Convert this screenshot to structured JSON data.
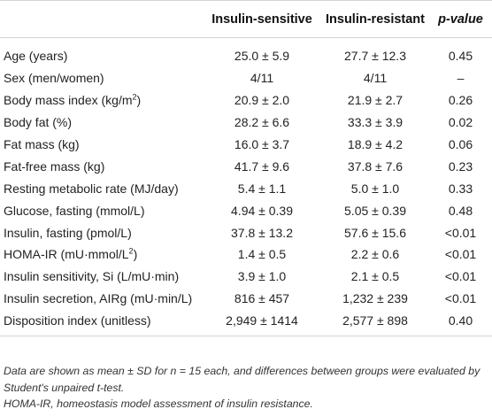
{
  "table": {
    "columns": [
      "",
      "Insulin-sensitive",
      "Insulin-resistant",
      "p-value"
    ],
    "rows": [
      {
        "label": "Age (years)",
        "label_sup": "",
        "label_after": "",
        "sensitive": "25.0 ± 5.9",
        "resistant": "27.7 ± 12.3",
        "p": "0.45"
      },
      {
        "label": "Sex (men/women)",
        "label_sup": "",
        "label_after": "",
        "sensitive": "4/11",
        "resistant": "4/11",
        "p": "–"
      },
      {
        "label": "Body mass index (kg/m",
        "label_sup": "2",
        "label_after": ")",
        "sensitive": "20.9 ± 2.0",
        "resistant": "21.9 ± 2.7",
        "p": "0.26"
      },
      {
        "label": "Body fat (%)",
        "label_sup": "",
        "label_after": "",
        "sensitive": "28.2 ± 6.6",
        "resistant": "33.3 ± 3.9",
        "p": "0.02"
      },
      {
        "label": "Fat mass (kg)",
        "label_sup": "",
        "label_after": "",
        "sensitive": "16.0 ± 3.7",
        "resistant": "18.9 ± 4.2",
        "p": "0.06"
      },
      {
        "label": "Fat-free mass (kg)",
        "label_sup": "",
        "label_after": "",
        "sensitive": "41.7 ± 9.6",
        "resistant": "37.8 ± 7.6",
        "p": "0.23"
      },
      {
        "label": "Resting metabolic rate (MJ/day)",
        "label_sup": "",
        "label_after": "",
        "sensitive": "5.4 ± 1.1",
        "resistant": "5.0 ± 1.0",
        "p": "0.33"
      },
      {
        "label": "Glucose, fasting (mmol/L)",
        "label_sup": "",
        "label_after": "",
        "sensitive": "4.94 ± 0.39",
        "resistant": "5.05 ± 0.39",
        "p": "0.48"
      },
      {
        "label": "Insulin, fasting (pmol/L)",
        "label_sup": "",
        "label_after": "",
        "sensitive": "37.8 ± 13.2",
        "resistant": "57.6 ± 15.6",
        "p": "<0.01"
      },
      {
        "label": "HOMA-IR (mU·mmol/L",
        "label_sup": "2",
        "label_after": ")",
        "sensitive": "1.4 ± 0.5",
        "resistant": "2.2 ± 0.6",
        "p": "<0.01"
      },
      {
        "label": "Insulin sensitivity, Si (L/mU·min)",
        "label_sup": "",
        "label_after": "",
        "sensitive": "3.9 ± 1.0",
        "resistant": "2.1 ± 0.5",
        "p": "<0.01"
      },
      {
        "label": "Insulin secretion, AIRg (mU·min/L)",
        "label_sup": "",
        "label_after": "",
        "sensitive": "816 ± 457",
        "resistant": "1,232 ± 239",
        "p": "<0.01"
      },
      {
        "label": "Disposition index (unitless)",
        "label_sup": "",
        "label_after": "",
        "sensitive": "2,949 ± 1414",
        "resistant": "2,577 ± 898",
        "p": "0.40"
      }
    ]
  },
  "footnotes": [
    "Data are shown as mean ± SD for n = 15 each, and differences between groups were evaluated by Student's unpaired t-test.",
    "HOMA-IR, homeostasis model assessment of insulin resistance."
  ]
}
